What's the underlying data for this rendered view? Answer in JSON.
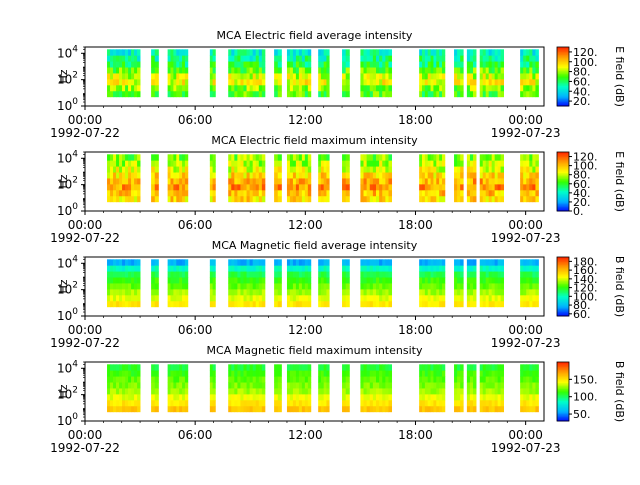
{
  "chart_data": [
    {
      "type": "heatmap",
      "title": "MCA  Electric field average intensity",
      "ylabel": "Hz",
      "yscale": "log",
      "ylim": [
        1,
        30000
      ],
      "yticks": [
        {
          "base": "10",
          "exp": "0"
        },
        {
          "base": "10",
          "exp": "2"
        },
        {
          "base": "10",
          "exp": "4"
        }
      ],
      "xrange": [
        "1992-07-22 00:00",
        "1992-07-23 01:00"
      ],
      "xticks": [
        "00:00",
        "06:00",
        "12:00",
        "18:00",
        "00:00"
      ],
      "date_labels": [
        "1992-07-22",
        "1992-07-23"
      ],
      "colorbar": {
        "label": "E field (dB)",
        "range": [
          10,
          130
        ],
        "ticks": [
          "20.",
          "40.",
          "60.",
          "80.",
          "100.",
          "120."
        ]
      },
      "colormap": "rainbow",
      "palette": [
        "#0000ff",
        "#00b4ff",
        "#00ffc8",
        "#33ff00",
        "#ffff00",
        "#ffa000",
        "#ff2800"
      ],
      "data_intervals_hours": [
        [
          1.2,
          3.0
        ],
        [
          3.6,
          4.0
        ],
        [
          4.5,
          5.6
        ],
        [
          6.8,
          7.1
        ],
        [
          7.8,
          9.8
        ],
        [
          10.3,
          10.7
        ],
        [
          11.0,
          12.3
        ],
        [
          12.7,
          13.3
        ],
        [
          14.0,
          14.4
        ],
        [
          15.0,
          16.7
        ],
        [
          18.2,
          19.6
        ],
        [
          20.1,
          20.6
        ],
        [
          20.8,
          21.3
        ],
        [
          21.5,
          22.8
        ],
        [
          23.7,
          24.7
        ]
      ],
      "profile_db_low_to_high": [
        70,
        78,
        90,
        85,
        72,
        62,
        55,
        48
      ],
      "variability_db": 28
    },
    {
      "type": "heatmap",
      "title": "MCA  Electric field maximum intensity",
      "ylabel": "Hz",
      "yscale": "log",
      "ylim": [
        1,
        30000
      ],
      "yticks": [
        {
          "base": "10",
          "exp": "0"
        },
        {
          "base": "10",
          "exp": "2"
        },
        {
          "base": "10",
          "exp": "4"
        }
      ],
      "xrange": [
        "1992-07-22 00:00",
        "1992-07-23 01:00"
      ],
      "xticks": [
        "00:00",
        "06:00",
        "12:00",
        "18:00",
        "00:00"
      ],
      "date_labels": [
        "1992-07-22",
        "1992-07-23"
      ],
      "colorbar": {
        "label": "E field (dB)",
        "range": [
          0,
          130
        ],
        "ticks": [
          "0.",
          "20.",
          "40.",
          "60.",
          "80.",
          "100.",
          "120."
        ]
      },
      "colormap": "rainbow",
      "palette": [
        "#0000ff",
        "#00b4ff",
        "#00ffc8",
        "#33ff00",
        "#ffff00",
        "#ffa000",
        "#ff2800"
      ],
      "data_intervals_hours": [
        [
          1.2,
          3.0
        ],
        [
          3.6,
          4.0
        ],
        [
          4.5,
          5.6
        ],
        [
          6.8,
          7.1
        ],
        [
          7.8,
          9.8
        ],
        [
          10.3,
          10.7
        ],
        [
          11.0,
          12.3
        ],
        [
          12.7,
          13.3
        ],
        [
          14.0,
          14.4
        ],
        [
          15.0,
          16.7
        ],
        [
          18.2,
          19.6
        ],
        [
          20.1,
          20.6
        ],
        [
          20.8,
          21.3
        ],
        [
          21.5,
          22.8
        ],
        [
          23.7,
          24.7
        ]
      ],
      "profile_db_low_to_high": [
        95,
        100,
        110,
        105,
        95,
        85,
        78,
        72
      ],
      "variability_db": 30
    },
    {
      "type": "heatmap",
      "title": "MCA  Magnetic field average intensity",
      "ylabel": "Hz",
      "yscale": "log",
      "ylim": [
        1,
        30000
      ],
      "yticks": [
        {
          "base": "10",
          "exp": "0"
        },
        {
          "base": "10",
          "exp": "2"
        },
        {
          "base": "10",
          "exp": "4"
        }
      ],
      "xrange": [
        "1992-07-22 00:00",
        "1992-07-23 01:00"
      ],
      "xticks": [
        "00:00",
        "06:00",
        "12:00",
        "18:00",
        "00:00"
      ],
      "date_labels": [
        "1992-07-22",
        "1992-07-23"
      ],
      "colorbar": {
        "label": "B field (dB)",
        "range": [
          55,
          190
        ],
        "ticks": [
          "60.",
          "80.",
          "100.",
          "120.",
          "140.",
          "160.",
          "180."
        ]
      },
      "colormap": "rainbow",
      "palette": [
        "#0000ff",
        "#00b4ff",
        "#00ffc8",
        "#33ff00",
        "#ffff00",
        "#ffa000",
        "#ff2800"
      ],
      "data_intervals_hours": [
        [
          1.2,
          3.0
        ],
        [
          3.6,
          4.0
        ],
        [
          4.5,
          5.6
        ],
        [
          6.8,
          7.1
        ],
        [
          7.8,
          9.8
        ],
        [
          10.3,
          10.7
        ],
        [
          11.0,
          12.3
        ],
        [
          12.7,
          13.3
        ],
        [
          14.0,
          14.4
        ],
        [
          15.0,
          16.7
        ],
        [
          18.2,
          19.6
        ],
        [
          20.1,
          20.6
        ],
        [
          20.8,
          21.3
        ],
        [
          21.5,
          22.8
        ],
        [
          23.7,
          24.7
        ]
      ],
      "profile_db_low_to_high": [
        150,
        142,
        135,
        128,
        122,
        114,
        100,
        78
      ],
      "variability_db": 10
    },
    {
      "type": "heatmap",
      "title": "MCA  Magnetic field maximum intensity",
      "ylabel": "Hz",
      "yscale": "log",
      "ylim": [
        1,
        30000
      ],
      "yticks": [
        {
          "base": "10",
          "exp": "0"
        },
        {
          "base": "10",
          "exp": "2"
        },
        {
          "base": "10",
          "exp": "4"
        }
      ],
      "xrange": [
        "1992-07-22 00:00",
        "1992-07-23 01:00"
      ],
      "xticks": [
        "00:00",
        "06:00",
        "12:00",
        "18:00",
        "00:00"
      ],
      "date_labels": [
        "1992-07-22",
        "1992-07-23"
      ],
      "colorbar": {
        "label": "B field (dB)",
        "range": [
          30,
          200
        ],
        "ticks": [
          "50.",
          "100.",
          "150."
        ]
      },
      "colormap": "rainbow",
      "palette": [
        "#0000ff",
        "#00b4ff",
        "#00ffc8",
        "#33ff00",
        "#ffff00",
        "#ffa000",
        "#ff2800"
      ],
      "data_intervals_hours": [
        [
          1.2,
          3.0
        ],
        [
          3.6,
          4.0
        ],
        [
          4.5,
          5.6
        ],
        [
          6.8,
          7.1
        ],
        [
          7.8,
          9.8
        ],
        [
          10.3,
          10.7
        ],
        [
          11.0,
          12.3
        ],
        [
          12.7,
          13.3
        ],
        [
          14.0,
          14.4
        ],
        [
          15.0,
          16.7
        ],
        [
          18.2,
          19.6
        ],
        [
          20.1,
          20.6
        ],
        [
          20.8,
          21.3
        ],
        [
          21.5,
          22.8
        ],
        [
          23.7,
          24.7
        ]
      ],
      "profile_db_low_to_high": [
        160,
        150,
        140,
        130,
        125,
        120,
        115,
        108
      ],
      "variability_db": 12
    }
  ]
}
